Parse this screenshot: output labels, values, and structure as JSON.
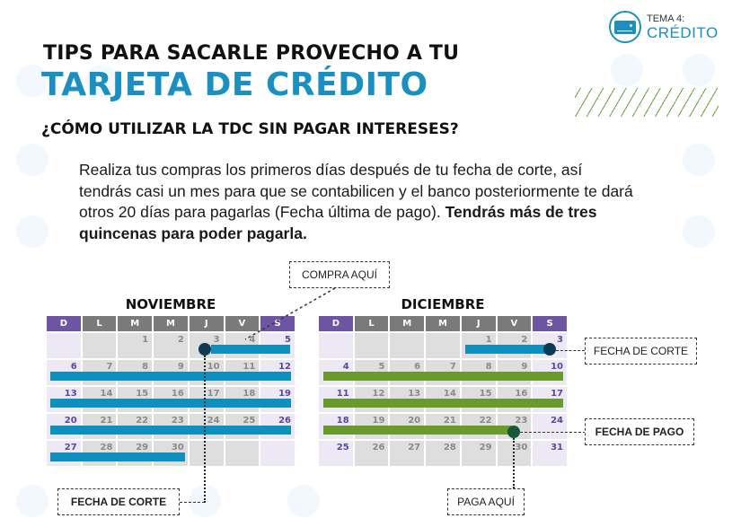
{
  "badge": {
    "kicker": "TEMA 4:",
    "title": "CRÉDITO",
    "icon": "credit-card-icon"
  },
  "header": {
    "title_line1": "TIPS PARA SACARLE PROVECHO A TU",
    "title_line2": "TARJETA DE CRÉDITO",
    "subtitle": "¿CÓMO UTILIZAR LA TDC SIN PAGAR INTERESES?"
  },
  "body": {
    "text": "Realiza tus compras los primeros días después de tu fecha de corte, así tendrás casi un mes para que se contabilicen y el banco posteriormente te dará otros 20 días  para pagarlas (Fecha última de pago). ",
    "bold": "Tendrás más de tres quincenas para poder pagarla."
  },
  "colors": {
    "accent": "#1a8fc0",
    "weekend": "#6d55a3",
    "weekday_header": "#7a7a7a",
    "bar_purchase": "#0e8fbd",
    "bar_payment": "#6a9a2d",
    "cut_dot": "#0b3a55",
    "pay_dot": "#17573a"
  },
  "calendars": {
    "weekdays": [
      "D",
      "L",
      "M",
      "M",
      "J",
      "V",
      "S"
    ],
    "november": {
      "title": "NOVIEMBRE",
      "cells": [
        "",
        "",
        "1",
        "2",
        "3",
        "4",
        "5",
        "6",
        "7",
        "8",
        "9",
        "10",
        "11",
        "12",
        "13",
        "14",
        "15",
        "16",
        "17",
        "18",
        "19",
        "20",
        "21",
        "22",
        "23",
        "24",
        "25",
        "26",
        "27",
        "28",
        "29",
        "30",
        "",
        "",
        ""
      ]
    },
    "december": {
      "title": "DICIEMBRE",
      "cells": [
        "",
        "",
        "",
        "",
        "1",
        "2",
        "3",
        "4",
        "5",
        "6",
        "7",
        "8",
        "9",
        "10",
        "11",
        "12",
        "13",
        "14",
        "15",
        "16",
        "17",
        "18",
        "19",
        "20",
        "21",
        "22",
        "23",
        "24",
        "25",
        "26",
        "27",
        "28",
        "29",
        "30",
        "31"
      ]
    }
  },
  "callouts": {
    "compra_aqui": "COMPRA AQUÍ",
    "fecha_corte_bottom": "FECHA DE CORTE",
    "fecha_corte_right": "FECHA DE CORTE",
    "fecha_pago": "FECHA DE PAGO",
    "paga_aqui": "PAGA AQUÍ"
  }
}
